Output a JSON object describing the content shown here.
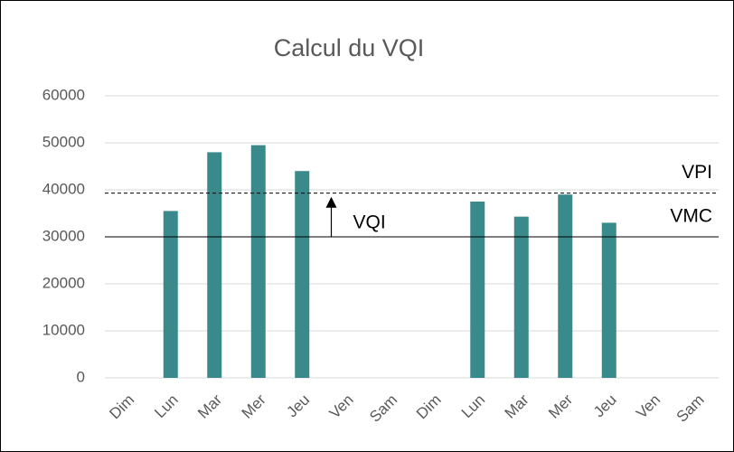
{
  "chart_data": {
    "type": "bar",
    "title": "Calcul du VQI",
    "categories": [
      "Dim",
      "Lun",
      "Mar",
      "Mer",
      "Jeu",
      "Ven",
      "Sam",
      "Dim",
      "Lun",
      "Mar",
      "Mer",
      "Jeu",
      "Ven",
      "Sam"
    ],
    "values": [
      null,
      35500,
      48000,
      49500,
      44000,
      null,
      null,
      null,
      37500,
      34300,
      39000,
      33000,
      null,
      null
    ],
    "color": "#3a8a8c",
    "ylim": [
      0,
      60000
    ],
    "yticks": [
      0,
      10000,
      20000,
      30000,
      40000,
      50000,
      60000
    ],
    "grid": true,
    "reference_lines": [
      {
        "label": "VPI",
        "value": 39300,
        "style": "dashed"
      },
      {
        "label": "VMC",
        "value": 30000,
        "style": "solid"
      }
    ],
    "annotation": {
      "label": "VQI",
      "from": 30000,
      "to": 38500
    }
  }
}
